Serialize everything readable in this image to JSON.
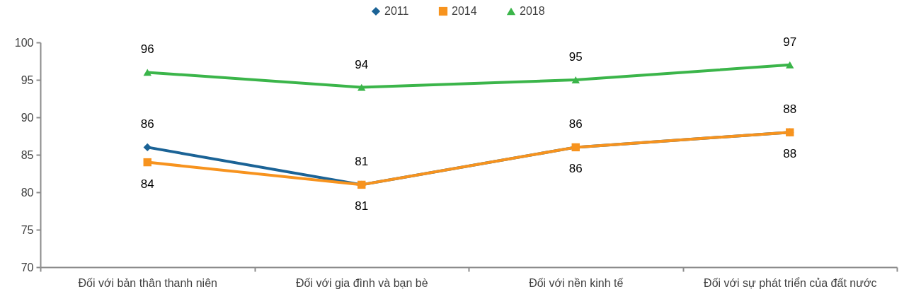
{
  "chart_data": {
    "type": "line",
    "categories": [
      "Đối với bản thân thanh niên",
      "Đối với gia đình và bạn bè",
      "Đối với nền kinh tế",
      "Đối với sự phát triển của đất nước"
    ],
    "series": [
      {
        "name": "2011",
        "color": "#1b6396",
        "marker": "diamond",
        "values": [
          86,
          81,
          86,
          88
        ]
      },
      {
        "name": "2014",
        "color": "#f7931e",
        "marker": "square",
        "values": [
          84,
          81,
          86,
          88
        ]
      },
      {
        "name": "2018",
        "color": "#3bb54a",
        "marker": "triangle",
        "values": [
          96,
          94,
          95,
          97
        ]
      }
    ],
    "ylim": [
      70,
      100
    ],
    "yticks": [
      70,
      75,
      80,
      85,
      90,
      95,
      100
    ],
    "data_labels": true,
    "legend": "top",
    "grid": false,
    "line_style": "solid"
  }
}
